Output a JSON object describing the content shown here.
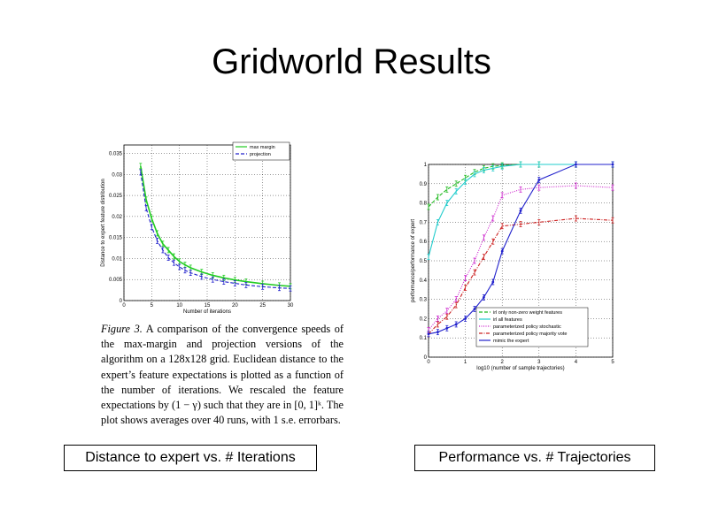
{
  "slide": {
    "title": "Gridworld Results",
    "caption_left": "Distance to expert vs. # Iterations",
    "caption_right": "Performance vs. # Trajectories"
  },
  "figure_caption": {
    "label": "Figure 3.",
    "text": "A comparison of the convergence speeds of the max-margin and projection versions of the algorithm on a 128x128 grid. Euclidean distance to the expert’s feature expectations is plotted as a function of the number of iterations. We rescaled the feature expectations by (1 − γ) such that they are in [0, 1]ᵏ. The plot shows averages over 40 runs, with 1 s.e. errorbars."
  },
  "chart_data": [
    {
      "type": "line",
      "xlabel": "Number of iterations",
      "ylabel": "Distance to expert feature distribution",
      "xlim": [
        0,
        30
      ],
      "ylim": [
        0,
        0.037
      ],
      "xticks": [
        "0",
        "5",
        "10",
        "15",
        "20",
        "25",
        "30"
      ],
      "yticks": [
        "0",
        "0.005",
        "0.01",
        "0.015",
        "0.02",
        "0.025",
        "0.03",
        "0.035"
      ],
      "grid": true,
      "legend_position": "top-right",
      "series": [
        {
          "name": "max margin",
          "color": "#22cc22",
          "style": "solid",
          "x": [
            3,
            4,
            5,
            6,
            7,
            8,
            9,
            10,
            11,
            12,
            14,
            16,
            18,
            20,
            22,
            25,
            28,
            30
          ],
          "y": [
            0.032,
            0.024,
            0.0195,
            0.016,
            0.0135,
            0.012,
            0.0105,
            0.0093,
            0.0085,
            0.0078,
            0.0068,
            0.006,
            0.0054,
            0.0049,
            0.0045,
            0.004,
            0.0036,
            0.0034
          ]
        },
        {
          "name": "projection",
          "color": "#2222cc",
          "style": "dashed",
          "x": [
            3,
            4,
            5,
            6,
            7,
            8,
            9,
            10,
            11,
            12,
            14,
            16,
            18,
            20,
            22,
            25,
            28,
            30
          ],
          "y": [
            0.0305,
            0.022,
            0.0175,
            0.0142,
            0.012,
            0.0102,
            0.009,
            0.008,
            0.0072,
            0.0066,
            0.0057,
            0.005,
            0.0045,
            0.0041,
            0.0037,
            0.0033,
            0.003,
            0.0029
          ]
        }
      ]
    },
    {
      "type": "line",
      "xlabel": "log10 (number of sample trajectories)",
      "ylabel": "performance/performance of expert",
      "xlim": [
        0,
        5
      ],
      "ylim": [
        0,
        1
      ],
      "xticks": [
        "0",
        "1",
        "2",
        "3",
        "4",
        "5"
      ],
      "yticks": [
        "0",
        "0.1",
        "0.2",
        "0.3",
        "0.4",
        "0.5",
        "0.6",
        "0.7",
        "0.8",
        "0.9",
        "1"
      ],
      "grid": true,
      "legend_position": "bottom-right",
      "series": [
        {
          "name": "irl only non-zero weight features",
          "color": "#22bb22",
          "style": "dashed",
          "x": [
            0,
            0.25,
            0.5,
            0.75,
            1,
            1.25,
            1.5,
            1.75,
            2,
            2.5,
            3,
            4,
            5
          ],
          "y": [
            0.78,
            0.83,
            0.87,
            0.9,
            0.93,
            0.96,
            0.98,
            0.99,
            0.995,
            1,
            1,
            1,
            1
          ]
        },
        {
          "name": "irl all features",
          "color": "#22cccc",
          "style": "solid",
          "x": [
            0,
            0.25,
            0.5,
            0.75,
            1,
            1.25,
            1.5,
            1.75,
            2,
            2.5,
            3,
            4,
            5
          ],
          "y": [
            0.52,
            0.7,
            0.8,
            0.86,
            0.91,
            0.95,
            0.97,
            0.98,
            0.99,
            1,
            1,
            1,
            1
          ]
        },
        {
          "name": "parameterized policy stochastic",
          "color": "#cc22cc",
          "style": "dotted",
          "x": [
            0,
            0.25,
            0.5,
            0.75,
            1,
            1.25,
            1.5,
            1.75,
            2,
            2.5,
            3,
            4,
            5
          ],
          "y": [
            0.14,
            0.2,
            0.24,
            0.3,
            0.41,
            0.5,
            0.62,
            0.72,
            0.84,
            0.87,
            0.88,
            0.89,
            0.88
          ]
        },
        {
          "name": "parameterized policy majority vote",
          "color": "#cc2222",
          "style": "dashdot",
          "x": [
            0,
            0.25,
            0.5,
            0.75,
            1,
            1.25,
            1.5,
            1.75,
            2,
            2.5,
            3,
            4,
            5
          ],
          "y": [
            0.12,
            0.17,
            0.21,
            0.27,
            0.36,
            0.44,
            0.52,
            0.6,
            0.68,
            0.69,
            0.7,
            0.72,
            0.71
          ]
        },
        {
          "name": "mimic the expert",
          "color": "#2222cc",
          "style": "solid-marker",
          "x": [
            0,
            0.25,
            0.5,
            0.75,
            1,
            1.25,
            1.5,
            1.75,
            2,
            2.5,
            3,
            4,
            5
          ],
          "y": [
            0.12,
            0.13,
            0.15,
            0.17,
            0.2,
            0.25,
            0.31,
            0.39,
            0.55,
            0.76,
            0.92,
            1,
            1
          ]
        }
      ]
    }
  ]
}
